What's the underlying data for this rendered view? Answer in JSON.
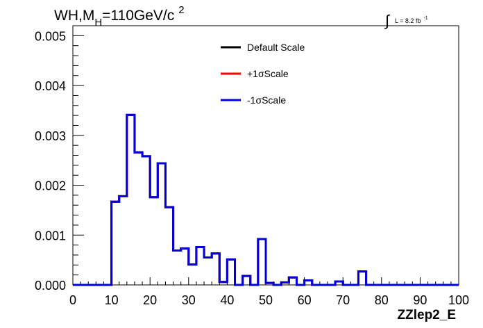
{
  "chart_data": {
    "type": "line",
    "title_main": "WH,M",
    "title_sub": "H",
    "title_rest": "=110GeV/c",
    "title_sup": "2",
    "lumi_label": "L = 8.2 fb",
    "lumi_sup": "-1",
    "xlabel": "ZZlep2_E",
    "ylabel": "",
    "xlim": [
      0,
      100
    ],
    "ylim": [
      0,
      0.0052
    ],
    "x_ticks": [
      "0",
      "10",
      "20",
      "30",
      "40",
      "50",
      "60",
      "70",
      "80",
      "90",
      "100"
    ],
    "y_ticks": [
      "0.000",
      "0.001",
      "0.002",
      "0.003",
      "0.004",
      "0.005"
    ],
    "grid": false,
    "legend_position": "top-center",
    "bin_width": 2,
    "series": [
      {
        "name": "Default Scale",
        "color": "#000000",
        "values": [
          0,
          0,
          0,
          0,
          0,
          0.00167,
          0.00178,
          0.00341,
          0.00266,
          0.00258,
          0.00176,
          0.00244,
          0.00156,
          0.00069,
          0.00073,
          0.00041,
          0.00076,
          0.00055,
          0.00063,
          6e-05,
          0.00051,
          0,
          0.00018,
          0,
          0.00092,
          4e-05,
          0,
          5e-05,
          0.00015,
          0,
          9e-05,
          0,
          0,
          0,
          7e-05,
          0,
          0,
          0.00027,
          0,
          0,
          0,
          0,
          0,
          0,
          0,
          0,
          0,
          0,
          0,
          0
        ]
      },
      {
        "name": "+1σScale",
        "color": "#ff0000",
        "values": [
          0,
          0,
          0,
          0,
          0,
          0.00167,
          0.00178,
          0.00341,
          0.00266,
          0.00258,
          0.00176,
          0.00244,
          0.00156,
          0.00069,
          0.00073,
          0.00041,
          0.00076,
          0.00055,
          0.00063,
          6e-05,
          0.00051,
          0,
          0.00018,
          0,
          0.00092,
          4e-05,
          0,
          5e-05,
          0.00015,
          0,
          9e-05,
          0,
          0,
          0,
          7e-05,
          0,
          0,
          0.00027,
          0,
          0,
          0,
          0,
          0,
          0,
          0,
          0,
          0,
          0,
          0,
          0
        ]
      },
      {
        "name": "-1σScale",
        "color": "#0000dd",
        "values": [
          0,
          0,
          0,
          0,
          0,
          0.00167,
          0.00178,
          0.00341,
          0.00266,
          0.00258,
          0.00176,
          0.00244,
          0.00156,
          0.00069,
          0.00073,
          0.00041,
          0.00076,
          0.00055,
          0.00063,
          6e-05,
          0.00051,
          0,
          0.00018,
          0,
          0.00092,
          4e-05,
          0,
          5e-05,
          0.00015,
          0,
          9e-05,
          0,
          0,
          0,
          7e-05,
          0,
          0,
          0.00027,
          0,
          0,
          0,
          0,
          0,
          0,
          0,
          0,
          0,
          0,
          0,
          0
        ]
      }
    ]
  }
}
